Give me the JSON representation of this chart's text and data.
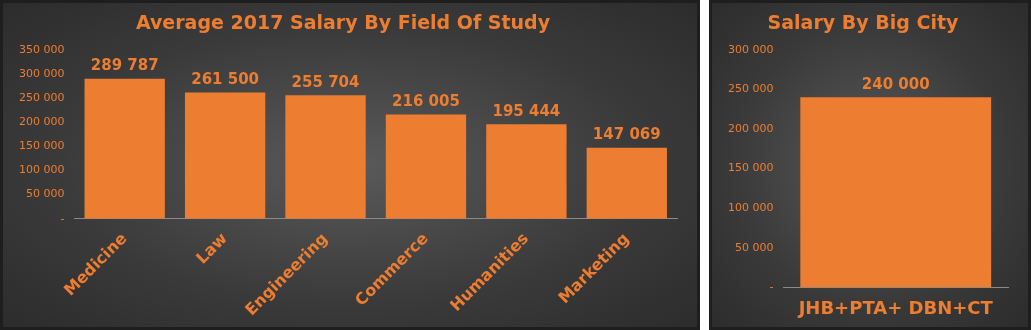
{
  "chart_data": [
    {
      "type": "bar",
      "title": "Average 2017 Salary By Field Of Study",
      "categories": [
        "Medicine",
        "Law",
        "Engineering",
        "Commerce",
        "Humanities",
        "Marketing"
      ],
      "values": [
        289787,
        261500,
        255704,
        216005,
        195444,
        147069
      ],
      "value_labels": [
        "289 787",
        "261 500",
        "255 704",
        "216 005",
        "195 444",
        "147 069"
      ],
      "color": "#ed7d31",
      "ylim": [
        0,
        350000
      ],
      "yticks": [
        {
          "value": 0,
          "label": "-"
        },
        {
          "value": 50000,
          "label": "50 000"
        },
        {
          "value": 100000,
          "label": "100 000"
        },
        {
          "value": 150000,
          "label": "150 000"
        },
        {
          "value": 200000,
          "label": "200 000"
        },
        {
          "value": 250000,
          "label": "250 000"
        },
        {
          "value": 300000,
          "label": "300 000"
        },
        {
          "value": 350000,
          "label": "350 000"
        }
      ]
    },
    {
      "type": "bar",
      "title": "Salary By Big City",
      "categories": [
        "JHB+PTA+ DBN+CT"
      ],
      "values": [
        240000
      ],
      "value_labels": [
        "240 000"
      ],
      "color": "#ed7d31",
      "ylim": [
        0,
        300000
      ],
      "yticks": [
        {
          "value": 0,
          "label": "-"
        },
        {
          "value": 50000,
          "label": "50 000"
        },
        {
          "value": 100000,
          "label": "100 000"
        },
        {
          "value": 150000,
          "label": "150 000"
        },
        {
          "value": 200000,
          "label": "200 000"
        },
        {
          "value": 250000,
          "label": "250 000"
        },
        {
          "value": 300000,
          "label": "300 000"
        }
      ]
    }
  ]
}
